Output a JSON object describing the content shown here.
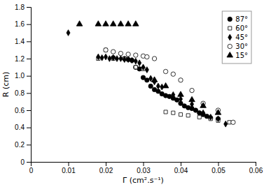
{
  "chart_data": {
    "type": "scatter",
    "xlabel": "Γ (cm².s⁻¹)",
    "ylabel": "R (cm)",
    "xlim": [
      0,
      0.06
    ],
    "ylim": [
      0,
      1.8
    ],
    "xticks": [
      0,
      0.01,
      0.02,
      0.03,
      0.04,
      0.05,
      0.06
    ],
    "yticks": [
      0,
      0.2,
      0.4,
      0.6,
      0.8,
      {
        "value": 1.0,
        "label": "1.0"
      },
      1.2,
      1.4,
      1.6,
      1.8
    ],
    "grid": false,
    "legend": "upper-right",
    "series": [
      {
        "name": "87°",
        "color": "black",
        "marker": "circle",
        "x": [
          0.022,
          0.025,
          0.026,
          0.027,
          0.028,
          0.029,
          0.03,
          0.031,
          0.032,
          0.033,
          0.034,
          0.035,
          0.036,
          0.037,
          0.038,
          0.039,
          0.04,
          0.041,
          0.042,
          0.043,
          0.044,
          0.045,
          0.046,
          0.047,
          0.048,
          0.05
        ],
        "values": [
          1.21,
          1.2,
          1.19,
          1.18,
          1.1,
          1.08,
          0.98,
          0.95,
          0.88,
          0.84,
          0.82,
          0.79,
          0.77,
          0.76,
          0.74,
          0.72,
          0.68,
          0.65,
          0.63,
          0.62,
          0.6,
          0.57,
          0.55,
          0.53,
          0.51,
          0.5
        ]
      },
      {
        "name": "60°",
        "color": "black",
        "marker": "square-open",
        "x": [
          0.018,
          0.02,
          0.022,
          0.025,
          0.028,
          0.03,
          0.036,
          0.038,
          0.04,
          0.042,
          0.045,
          0.048,
          0.05,
          0.053
        ],
        "values": [
          1.2,
          1.3,
          1.2,
          1.2,
          1.1,
          1.08,
          0.58,
          0.57,
          0.55,
          0.54,
          0.52,
          0.5,
          0.48,
          0.46
        ]
      },
      {
        "name": "45°",
        "color": "black",
        "marker": "diamond",
        "x": [
          0.01,
          0.018,
          0.019,
          0.02,
          0.021,
          0.022,
          0.023,
          0.024,
          0.025,
          0.026,
          0.027,
          0.028,
          0.029,
          0.03,
          0.031,
          0.032,
          0.033,
          0.034,
          0.035,
          0.038,
          0.04,
          0.043,
          0.046,
          0.048,
          0.05,
          0.052
        ],
        "values": [
          1.5,
          1.22,
          1.21,
          1.22,
          1.2,
          1.21,
          1.2,
          1.2,
          1.19,
          1.19,
          1.18,
          1.17,
          1.15,
          1.1,
          1.07,
          0.97,
          0.93,
          0.88,
          0.87,
          0.78,
          0.73,
          0.67,
          0.57,
          0.52,
          0.5,
          0.44
        ]
      },
      {
        "name": "30°",
        "color": "black",
        "marker": "circle-open",
        "x": [
          0.02,
          0.022,
          0.024,
          0.026,
          0.028,
          0.03,
          0.031,
          0.033,
          0.036,
          0.038,
          0.04,
          0.043,
          0.046,
          0.05,
          0.054
        ],
        "values": [
          1.3,
          1.28,
          1.26,
          1.25,
          1.24,
          1.23,
          1.22,
          1.2,
          1.05,
          1.02,
          0.95,
          0.83,
          0.68,
          0.6,
          0.46
        ]
      },
      {
        "name": "15°",
        "color": "black",
        "marker": "triangle-up",
        "x": [
          0.013,
          0.018,
          0.02,
          0.022,
          0.024,
          0.026,
          0.028,
          0.033,
          0.036,
          0.04,
          0.043,
          0.046,
          0.05
        ],
        "values": [
          1.6,
          1.6,
          1.6,
          1.6,
          1.6,
          1.6,
          1.6,
          0.95,
          0.88,
          0.78,
          0.72,
          0.65,
          0.57
        ]
      }
    ]
  }
}
